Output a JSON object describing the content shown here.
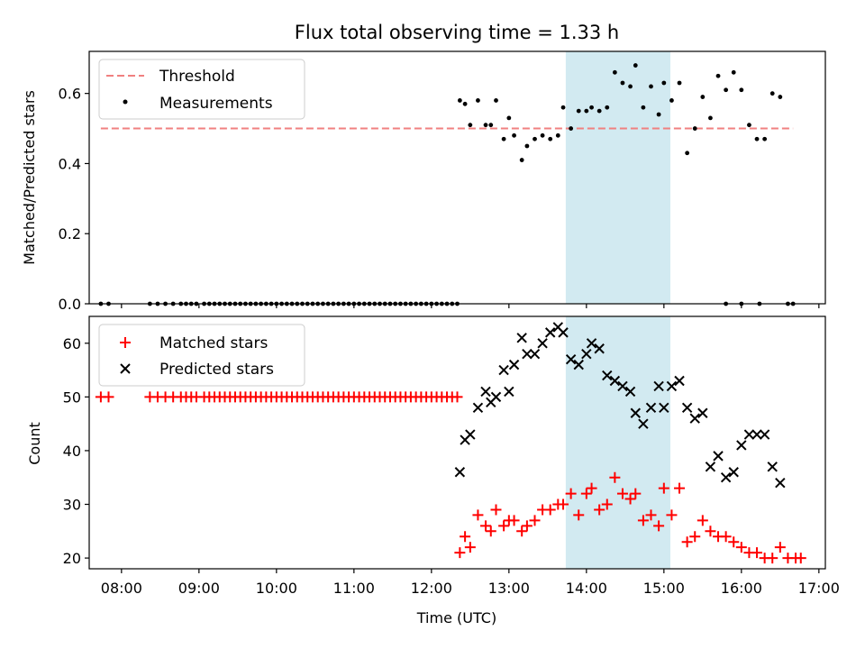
{
  "chart_data": [
    {
      "type": "scatter",
      "title": "Flux total observing time = 1.33 h",
      "ylabel": "Matched/Predicted stars",
      "xlabel": "",
      "xlim": [
        "07:35",
        "17:05"
      ],
      "ylim": [
        0,
        0.72
      ],
      "yticks": [
        "0.0",
        "0.2",
        "0.4",
        "0.6"
      ],
      "highlight_span": {
        "start": "13:44",
        "end": "15:05",
        "color": "#add8e6"
      },
      "legend_position": "upper-left",
      "legend": [
        "Threshold",
        "Measurements"
      ],
      "threshold": {
        "name": "Threshold",
        "y": 0.5,
        "x_start": "07:44",
        "x_end": "16:40",
        "color": "#f08080"
      },
      "series": [
        {
          "name": "Measurements",
          "color": "#000000",
          "marker": "dot",
          "x": [
            "07:44",
            "07:50",
            "08:22",
            "08:28",
            "08:34",
            "08:40",
            "08:46",
            "08:50",
            "08:54",
            "08:58",
            "09:04",
            "09:08",
            "09:12",
            "09:16",
            "09:20",
            "09:24",
            "09:28",
            "09:32",
            "09:36",
            "09:40",
            "09:44",
            "09:48",
            "09:52",
            "09:56",
            "10:00",
            "10:04",
            "10:08",
            "10:12",
            "10:16",
            "10:20",
            "10:24",
            "10:28",
            "10:32",
            "10:36",
            "10:40",
            "10:44",
            "10:48",
            "10:52",
            "10:56",
            "11:00",
            "11:04",
            "11:08",
            "11:12",
            "11:16",
            "11:20",
            "11:24",
            "11:28",
            "11:32",
            "11:36",
            "11:40",
            "11:44",
            "11:48",
            "11:52",
            "11:56",
            "12:00",
            "12:04",
            "12:08",
            "12:12",
            "12:16",
            "12:20",
            "12:22",
            "12:26",
            "12:30",
            "12:36",
            "12:42",
            "12:46",
            "12:50",
            "12:56",
            "13:00",
            "13:04",
            "13:10",
            "13:14",
            "13:20",
            "13:26",
            "13:32",
            "13:38",
            "13:42",
            "13:48",
            "13:54",
            "14:00",
            "14:04",
            "14:10",
            "14:16",
            "14:22",
            "14:28",
            "14:34",
            "14:38",
            "14:44",
            "14:50",
            "14:56",
            "15:00",
            "15:06",
            "15:12",
            "15:18",
            "15:24",
            "15:30",
            "15:36",
            "15:42",
            "15:48",
            "15:54",
            "16:00",
            "16:06",
            "16:12",
            "16:18",
            "16:24",
            "16:30"
          ],
          "y": [
            0,
            0,
            0,
            0,
            0,
            0,
            0,
            0,
            0,
            0,
            0,
            0,
            0,
            0,
            0,
            0,
            0,
            0,
            0,
            0,
            0,
            0,
            0,
            0,
            0,
            0,
            0,
            0,
            0,
            0,
            0,
            0,
            0,
            0,
            0,
            0,
            0,
            0,
            0,
            0,
            0,
            0,
            0,
            0,
            0,
            0,
            0,
            0,
            0,
            0,
            0,
            0,
            0,
            0,
            0,
            0,
            0,
            0,
            0,
            0,
            0.58,
            0.57,
            0.51,
            0.58,
            0.51,
            0.51,
            0.58,
            0.47,
            0.53,
            0.48,
            0.41,
            0.45,
            0.47,
            0.48,
            0.47,
            0.48,
            0.56,
            0.5,
            0.55,
            0.55,
            0.56,
            0.55,
            0.56,
            0.66,
            0.63,
            0.62,
            0.68,
            0.56,
            0.62,
            0.54,
            0.63,
            0.58,
            0.63,
            0.43,
            0.5,
            0.59,
            0.53,
            0.65,
            0.61,
            0.66,
            0.61,
            0.51,
            0.47,
            0.47,
            0.6,
            0.59
          ]
        },
        {
          "name": "Measurements (zero, late)",
          "color": "#000000",
          "marker": "dot",
          "x": [
            "15:48",
            "16:00",
            "16:14",
            "16:36",
            "16:40"
          ],
          "y": [
            0,
            0,
            0,
            0,
            0
          ]
        }
      ]
    },
    {
      "type": "scatter",
      "title": "",
      "ylabel": "Count",
      "xlabel": "Time (UTC)",
      "xlim": [
        "07:35",
        "17:05"
      ],
      "ylim": [
        18,
        65
      ],
      "yticks": [
        "20",
        "30",
        "40",
        "50",
        "60"
      ],
      "xticks": [
        "08:00",
        "09:00",
        "10:00",
        "11:00",
        "12:00",
        "13:00",
        "14:00",
        "15:00",
        "16:00",
        "17:00"
      ],
      "highlight_span": {
        "start": "13:44",
        "end": "15:05",
        "color": "#add8e6"
      },
      "legend_position": "upper-left",
      "legend": [
        "Matched stars",
        "Predicted stars"
      ],
      "series": [
        {
          "name": "Matched stars",
          "color": "#ff0000",
          "marker": "plus",
          "x": [
            "07:44",
            "07:50",
            "08:22",
            "08:28",
            "08:34",
            "08:40",
            "08:46",
            "08:50",
            "08:54",
            "08:58",
            "09:04",
            "09:08",
            "09:12",
            "09:16",
            "09:20",
            "09:24",
            "09:28",
            "09:32",
            "09:36",
            "09:40",
            "09:44",
            "09:48",
            "09:52",
            "09:56",
            "10:00",
            "10:04",
            "10:08",
            "10:12",
            "10:16",
            "10:20",
            "10:24",
            "10:28",
            "10:32",
            "10:36",
            "10:40",
            "10:44",
            "10:48",
            "10:52",
            "10:56",
            "11:00",
            "11:04",
            "11:08",
            "11:12",
            "11:16",
            "11:20",
            "11:24",
            "11:28",
            "11:32",
            "11:36",
            "11:40",
            "11:44",
            "11:48",
            "11:52",
            "11:56",
            "12:00",
            "12:04",
            "12:08",
            "12:12",
            "12:16",
            "12:20",
            "12:22",
            "12:26",
            "12:30",
            "12:36",
            "12:42",
            "12:46",
            "12:50",
            "12:56",
            "13:00",
            "13:04",
            "13:10",
            "13:14",
            "13:20",
            "13:26",
            "13:32",
            "13:38",
            "13:42",
            "13:48",
            "13:54",
            "14:00",
            "14:04",
            "14:10",
            "14:16",
            "14:22",
            "14:28",
            "14:34",
            "14:38",
            "14:44",
            "14:50",
            "14:56",
            "15:00",
            "15:06",
            "15:12",
            "15:18",
            "15:24",
            "15:30",
            "15:36",
            "15:42",
            "15:48",
            "15:54",
            "16:00",
            "16:06",
            "16:12",
            "16:18",
            "16:24",
            "16:30",
            "16:36",
            "16:42",
            "16:46"
          ],
          "y": [
            50,
            50,
            50,
            50,
            50,
            50,
            50,
            50,
            50,
            50,
            50,
            50,
            50,
            50,
            50,
            50,
            50,
            50,
            50,
            50,
            50,
            50,
            50,
            50,
            50,
            50,
            50,
            50,
            50,
            50,
            50,
            50,
            50,
            50,
            50,
            50,
            50,
            50,
            50,
            50,
            50,
            50,
            50,
            50,
            50,
            50,
            50,
            50,
            50,
            50,
            50,
            50,
            50,
            50,
            50,
            50,
            50,
            50,
            50,
            50,
            21,
            24,
            22,
            28,
            26,
            25,
            29,
            26,
            27,
            27,
            25,
            26,
            27,
            29,
            29,
            30,
            30,
            32,
            28,
            32,
            33,
            29,
            30,
            35,
            32,
            31,
            32,
            27,
            28,
            26,
            33,
            28,
            33,
            23,
            24,
            27,
            25,
            24,
            24,
            23,
            22,
            21,
            21,
            20,
            20,
            22,
            20,
            20,
            20
          ]
        },
        {
          "name": "Predicted stars",
          "color": "#000000",
          "marker": "x",
          "x": [
            "12:22",
            "12:26",
            "12:30",
            "12:36",
            "12:42",
            "12:46",
            "12:50",
            "12:56",
            "13:00",
            "13:04",
            "13:10",
            "13:14",
            "13:20",
            "13:26",
            "13:32",
            "13:38",
            "13:42",
            "13:48",
            "13:54",
            "14:00",
            "14:04",
            "14:10",
            "14:16",
            "14:22",
            "14:28",
            "14:34",
            "14:38",
            "14:44",
            "14:50",
            "14:56",
            "15:00",
            "15:06",
            "15:12",
            "15:18",
            "15:24",
            "15:30",
            "15:36",
            "15:42",
            "15:48",
            "15:54",
            "16:00",
            "16:06",
            "16:12",
            "16:18",
            "16:24",
            "16:30"
          ],
          "y": [
            36,
            42,
            43,
            48,
            51,
            49,
            50,
            55,
            51,
            56,
            61,
            58,
            58,
            60,
            62,
            63,
            62,
            57,
            56,
            58,
            60,
            59,
            54,
            53,
            52,
            51,
            47,
            45,
            48,
            52,
            48,
            52,
            53,
            48,
            46,
            47,
            37,
            39,
            35,
            36,
            41,
            43,
            43,
            43,
            37,
            34
          ]
        }
      ]
    }
  ]
}
